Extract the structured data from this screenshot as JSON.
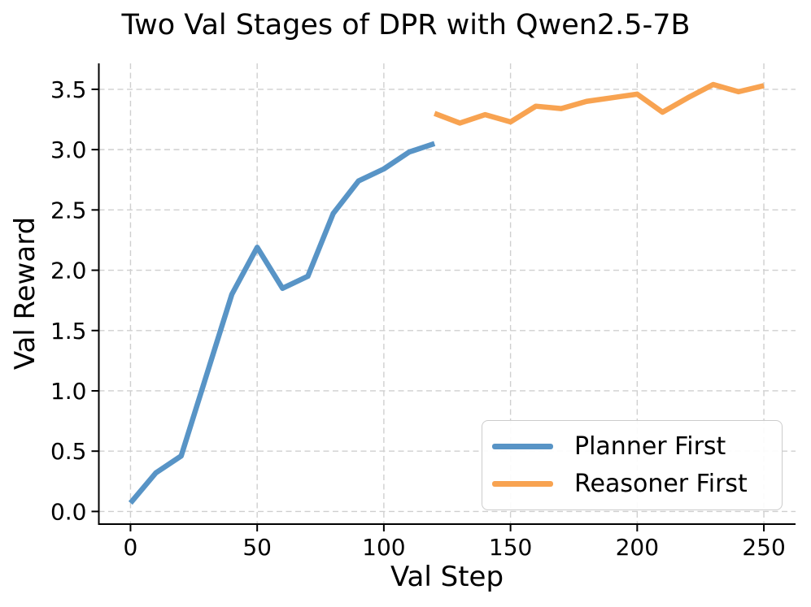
{
  "chart_data": {
    "type": "line",
    "title": "Two Val Stages of DPR with Qwen2.5-7B",
    "xlabel": "Val Step",
    "ylabel": "Val Reward",
    "xlim": [
      -12.5,
      262.5
    ],
    "ylim": [
      -0.105,
      3.715
    ],
    "xticks": [
      0,
      50,
      100,
      150,
      200,
      250
    ],
    "yticks": [
      0.0,
      0.5,
      1.0,
      1.5,
      2.0,
      2.5,
      3.0,
      3.5
    ],
    "grid": true,
    "grid_style": "dashed",
    "legend_position": "lower right",
    "colors": {
      "planner_first": "#5894C6",
      "reasoner_first": "#F8A351",
      "gridline": "#cfcfcf",
      "axis": "#000000"
    },
    "series": [
      {
        "name": "Planner First",
        "color": "#5894C6",
        "x": [
          0,
          10,
          20,
          30,
          40,
          50,
          60,
          70,
          80,
          90,
          100,
          110,
          120
        ],
        "y": [
          0.07,
          0.32,
          0.46,
          1.13,
          1.8,
          2.19,
          1.85,
          1.95,
          2.47,
          2.74,
          2.84,
          2.98,
          3.05
        ]
      },
      {
        "name": "Reasoner First",
        "color": "#F8A351",
        "x": [
          120,
          130,
          140,
          150,
          160,
          170,
          180,
          190,
          200,
          210,
          220,
          230,
          240,
          250
        ],
        "y": [
          3.3,
          3.22,
          3.29,
          3.23,
          3.36,
          3.34,
          3.4,
          3.43,
          3.46,
          3.31,
          3.43,
          3.54,
          3.48,
          3.53
        ]
      }
    ]
  }
}
